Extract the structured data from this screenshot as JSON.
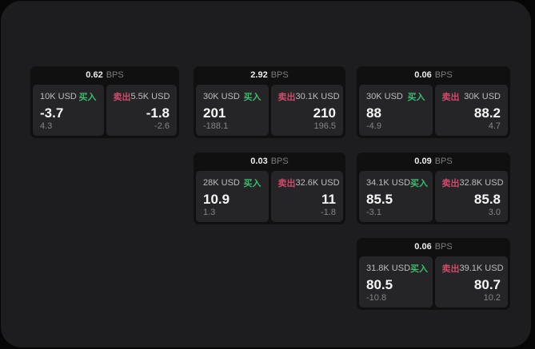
{
  "labels": {
    "buy": "买入",
    "sell": "卖出",
    "bps": "BPS"
  },
  "cards": [
    {
      "col": 0,
      "row": 0,
      "bps": "0.62",
      "buy": {
        "amount": "10K USD",
        "value": "-3.7",
        "sub": "4.3"
      },
      "sell": {
        "amount": "5.5K USD",
        "value": "-1.8",
        "sub": "-2.6"
      }
    },
    {
      "col": 1,
      "row": 0,
      "bps": "2.92",
      "buy": {
        "amount": "30K USD",
        "value": "201",
        "sub": "-188.1"
      },
      "sell": {
        "amount": "30.1K USD",
        "value": "210",
        "sub": "196.5"
      }
    },
    {
      "col": 2,
      "row": 0,
      "bps": "0.06",
      "buy": {
        "amount": "30K USD",
        "value": "88",
        "sub": "-4.9"
      },
      "sell": {
        "amount": "30K USD",
        "value": "88.2",
        "sub": "4.7"
      }
    },
    {
      "col": 1,
      "row": 1,
      "bps": "0.03",
      "buy": {
        "amount": "28K USD",
        "value": "10.9",
        "sub": "1.3"
      },
      "sell": {
        "amount": "32.6K USD",
        "value": "11",
        "sub": "-1.8"
      }
    },
    {
      "col": 2,
      "row": 1,
      "bps": "0.09",
      "buy": {
        "amount": "34.1K USD",
        "value": "85.5",
        "sub": "-3.1"
      },
      "sell": {
        "amount": "32.8K USD",
        "value": "85.8",
        "sub": "3.0"
      }
    },
    {
      "col": 2,
      "row": 2,
      "bps": "0.06",
      "buy": {
        "amount": "31.8K USD",
        "value": "80.5",
        "sub": "-10.8"
      },
      "sell": {
        "amount": "39.1K USD",
        "value": "80.7",
        "sub": "10.2"
      }
    }
  ],
  "colors": {
    "buy_green": "#3cba70",
    "sell_red": "#cf4a6b",
    "panel": "#1d1d1f",
    "card_header": "#101011",
    "subcard": "#252528",
    "page_bg": "#060607"
  }
}
